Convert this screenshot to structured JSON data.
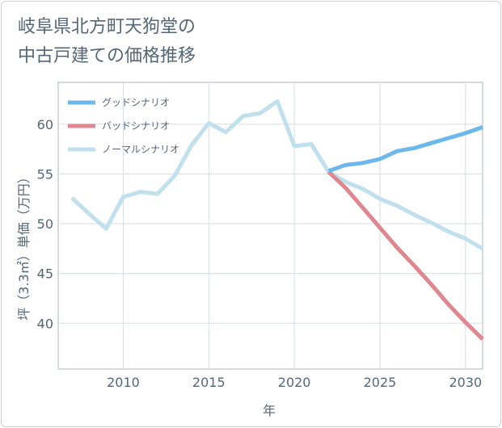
{
  "title": {
    "line1": "岐阜県北方町天狗堂の",
    "line2": "中古戸建ての価格推移"
  },
  "chart_data": {
    "type": "line",
    "xlabel": "年",
    "ylabel": "坪（3.3㎡）単価（万円）",
    "xlim": [
      2006.2,
      2031
    ],
    "ylim": [
      35.4,
      64.2
    ],
    "xticks": [
      2010,
      2015,
      2020,
      2025,
      2030
    ],
    "yticks": [
      40,
      45,
      50,
      55,
      60
    ],
    "grid": true,
    "legend_position": "top-left",
    "series": [
      {
        "name": "グッドシナリオ",
        "color": "#6cb8ec",
        "x": [
          2022,
          2023,
          2024,
          2025,
          2026,
          2027,
          2028,
          2029,
          2030,
          2031
        ],
        "y": [
          55.3,
          55.9,
          56.1,
          56.5,
          57.3,
          57.6,
          58.1,
          58.6,
          59.1,
          59.7
        ]
      },
      {
        "name": "バッドシナリオ",
        "color": "#e0868f",
        "x": [
          2022,
          2023,
          2024,
          2025,
          2026,
          2027,
          2028,
          2029,
          2030,
          2031
        ],
        "y": [
          55.2,
          53.6,
          51.6,
          49.6,
          47.6,
          45.8,
          43.9,
          41.9,
          40.1,
          38.4
        ]
      },
      {
        "name": "ノーマルシナリオ",
        "color": "#bfe0ec",
        "x": [
          2007,
          2008,
          2009,
          2010,
          2011,
          2012,
          2013,
          2014,
          2015,
          2016,
          2017,
          2018,
          2019,
          2020,
          2021,
          2022,
          2023,
          2024,
          2025,
          2026,
          2027,
          2028,
          2029,
          2030,
          2031
        ],
        "y": [
          52.6,
          51.0,
          49.5,
          52.7,
          53.2,
          53.0,
          54.8,
          57.9,
          60.1,
          59.2,
          60.8,
          61.1,
          62.3,
          57.8,
          58.0,
          55.2,
          54.2,
          53.5,
          52.5,
          51.8,
          50.9,
          50.1,
          49.2,
          48.5,
          47.5
        ]
      }
    ]
  }
}
